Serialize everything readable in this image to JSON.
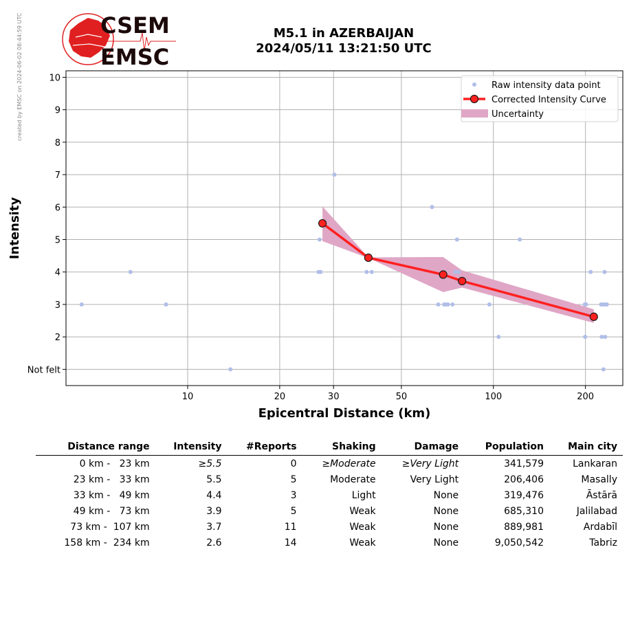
{
  "stamp": "created by EMSC on 2024-06-02 08:44:59 UTC",
  "logo": {
    "top": "CSEM",
    "bottom": "EMSC"
  },
  "title": {
    "line1": "M5.1 in AZERBAIJAN",
    "line2": "2024/05/11 13:21:50 UTC"
  },
  "chart_data": {
    "type": "scatter",
    "xlabel": "Epicentral Distance (km)",
    "ylabel": "Intensity",
    "xscale": "log",
    "xlim": [
      4,
      265
    ],
    "ylim": [
      0.5,
      10.2
    ],
    "grid": true,
    "legend_position": "top-right",
    "x_ticks": [
      10,
      20,
      30,
      50,
      100,
      200
    ],
    "y_ticks": [
      {
        "value": 1,
        "label": "Not felt"
      },
      {
        "value": 2,
        "label": "2"
      },
      {
        "value": 3,
        "label": "3"
      },
      {
        "value": 4,
        "label": "4"
      },
      {
        "value": 5,
        "label": "5"
      },
      {
        "value": 6,
        "label": "6"
      },
      {
        "value": 7,
        "label": "7"
      },
      {
        "value": 8,
        "label": "8"
      },
      {
        "value": 9,
        "label": "9"
      },
      {
        "value": 10,
        "label": "10"
      }
    ],
    "legend": [
      {
        "name": "Raw intensity data point",
        "kind": "point"
      },
      {
        "name": "Corrected Intensity Curve",
        "kind": "curve"
      },
      {
        "name": "Uncertainty",
        "kind": "band"
      }
    ],
    "raw_points": [
      {
        "x": 4.5,
        "y": 3
      },
      {
        "x": 6.5,
        "y": 4
      },
      {
        "x": 8.5,
        "y": 3
      },
      {
        "x": 13.8,
        "y": 1
      },
      {
        "x": 27.0,
        "y": 5
      },
      {
        "x": 26.8,
        "y": 4
      },
      {
        "x": 27.2,
        "y": 4
      },
      {
        "x": 30.2,
        "y": 7
      },
      {
        "x": 38.5,
        "y": 4
      },
      {
        "x": 40.0,
        "y": 4
      },
      {
        "x": 63.0,
        "y": 6
      },
      {
        "x": 66.0,
        "y": 3
      },
      {
        "x": 69.0,
        "y": 3
      },
      {
        "x": 70.0,
        "y": 3
      },
      {
        "x": 71.0,
        "y": 3
      },
      {
        "x": 73.5,
        "y": 3
      },
      {
        "x": 75.0,
        "y": 4
      },
      {
        "x": 76.0,
        "y": 5
      },
      {
        "x": 77.0,
        "y": 4
      },
      {
        "x": 97.0,
        "y": 3
      },
      {
        "x": 104.0,
        "y": 2
      },
      {
        "x": 122.0,
        "y": 5
      },
      {
        "x": 199.0,
        "y": 3
      },
      {
        "x": 201.0,
        "y": 3
      },
      {
        "x": 199.5,
        "y": 2
      },
      {
        "x": 208.0,
        "y": 4
      },
      {
        "x": 225.0,
        "y": 3
      },
      {
        "x": 226.0,
        "y": 2
      },
      {
        "x": 228.0,
        "y": 3
      },
      {
        "x": 229.0,
        "y": 1
      },
      {
        "x": 230.0,
        "y": 3
      },
      {
        "x": 231.0,
        "y": 4
      },
      {
        "x": 232.0,
        "y": 2
      },
      {
        "x": 233.0,
        "y": 3
      },
      {
        "x": 235.0,
        "y": 3
      }
    ],
    "curve": [
      {
        "x": 27.6,
        "y": 5.5
      },
      {
        "x": 39.0,
        "y": 4.44
      },
      {
        "x": 68.5,
        "y": 3.92
      },
      {
        "x": 79.0,
        "y": 3.72
      },
      {
        "x": 213.0,
        "y": 2.62
      }
    ],
    "band": {
      "x": [
        27.6,
        39.0,
        68.5,
        79.0,
        213.0
      ],
      "upper": [
        6.02,
        4.45,
        4.46,
        4.05,
        2.85
      ],
      "lower": [
        4.95,
        4.43,
        3.38,
        3.52,
        2.43
      ]
    },
    "colors": {
      "points": "#b0bee8",
      "curve": "#ff2020",
      "marker_edge": "#1a1a1a",
      "band": "#e0a6c6",
      "grid": "#b0b0b0"
    }
  },
  "table": {
    "headers": [
      "Distance range",
      "Intensity",
      "#Reports",
      "Shaking",
      "Damage",
      "Population",
      "Main city"
    ],
    "rows": [
      {
        "range": "0 km -   23 km",
        "intensity": "≥5.5",
        "reports": "0",
        "shaking": "≥Moderate",
        "damage": "≥Very Light",
        "population": "341,579",
        "city": "Lankaran"
      },
      {
        "range": "23 km -   33 km",
        "intensity": "5.5",
        "reports": "5",
        "shaking": "Moderate",
        "damage": "Very Light",
        "population": "206,406",
        "city": "Masally"
      },
      {
        "range": "33 km -   49 km",
        "intensity": "4.4",
        "reports": "3",
        "shaking": "Light",
        "damage": "None",
        "population": "319,476",
        "city": "Āstārā"
      },
      {
        "range": "49 km -   73 km",
        "intensity": "3.9",
        "reports": "5",
        "shaking": "Weak",
        "damage": "None",
        "population": "685,310",
        "city": "Jalilabad"
      },
      {
        "range": "73 km -  107 km",
        "intensity": "3.7",
        "reports": "11",
        "shaking": "Weak",
        "damage": "None",
        "population": "889,981",
        "city": "Ardabīl"
      },
      {
        "range": "158 km -  234 km",
        "intensity": "2.6",
        "reports": "14",
        "shaking": "Weak",
        "damage": "None",
        "population": "9,050,542",
        "city": "Tabriz"
      }
    ]
  }
}
